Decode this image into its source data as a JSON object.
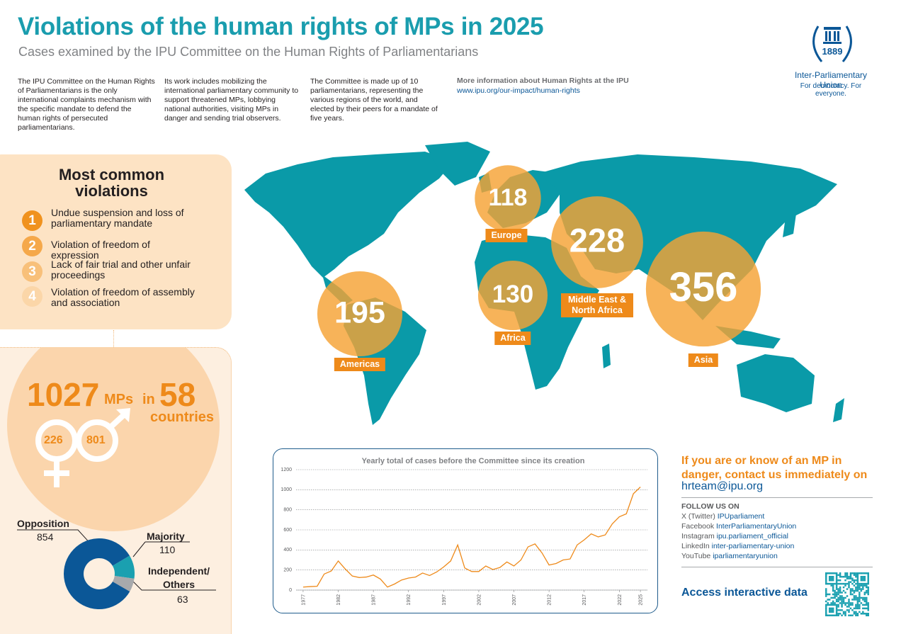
{
  "header": {
    "title": "Violations of the human rights of MPs in 2025",
    "subtitle": "Cases examined by the IPU Committee on the Human Rights of Parliamentarians"
  },
  "intro": [
    "The IPU Committee on the Human Rights of Parliamentarians is the only international complaints mechanism with the specific mandate to defend the human rights of persecuted parliamentarians.",
    "Its work includes mobilizing the international parliamentary community to support threatened MPs, lobbying national authorities, visiting MPs in danger and sending trial observers.",
    "The Committee is made up of 10 parliamentarians, representing the various regions of the world, and elected by their peers for a mandate of five years."
  ],
  "more_info": {
    "heading": "More information about Human Rights at the IPU",
    "url": "www.ipu.org/our-impact/human-rights"
  },
  "logo": {
    "year": "1889",
    "name": "Inter-Parliamentary Union",
    "tagline": "For democracy. For everyone."
  },
  "violations": {
    "title": "Most common violations",
    "items": [
      {
        "number": 1,
        "text": "Undue suspension and loss of parliamentary mandate"
      },
      {
        "number": 2,
        "text": "Violation of freedom of expression"
      },
      {
        "number": 3,
        "text": "Lack of fair trial and other unfair proceedings"
      },
      {
        "number": 4,
        "text": "Violation of freedom of assembly and association"
      }
    ]
  },
  "stats": {
    "total": 1027,
    "unit": "MPs",
    "joiner": "in",
    "countries": 58,
    "countries_label": "countries",
    "women": 226,
    "men": 801
  },
  "contact": {
    "message": "If you are or know of an MP in danger, contact us immediately on",
    "email": "hrteam@ipu.org"
  },
  "follow": {
    "heading": "FOLLOW US ON",
    "items": [
      {
        "platform": "X (Twitter)",
        "handle": "IPUparliament"
      },
      {
        "platform": "Facebook",
        "handle": "InterParliamentaryUnion"
      },
      {
        "platform": "Instagram",
        "handle": "ipu.parliament_official"
      },
      {
        "platform": "LinkedIn",
        "handle": "inter-parliamentary-union"
      },
      {
        "platform": "YouTube",
        "handle": "iparliamentaryunion"
      }
    ]
  },
  "access": "Access interactive data",
  "chart_data": [
    {
      "type": "bubble",
      "categories": [
        "Europe",
        "Middle East & North Africa",
        "Africa",
        "Americas",
        "Asia"
      ],
      "values": [
        118,
        228,
        130,
        195,
        356
      ],
      "color": "#f5a235",
      "label_color": "#ee8a1a"
    },
    {
      "type": "pie",
      "categories": [
        "Opposition",
        "Majority",
        "Independent/ Others"
      ],
      "values": [
        854,
        110,
        63
      ],
      "colors": [
        "#0b5797",
        "#1aa0b0",
        "#a7a9ac"
      ]
    },
    {
      "type": "line",
      "title": "Yearly total of cases before the Committee since its creation",
      "x": [
        1977,
        1978,
        1979,
        1980,
        1981,
        1982,
        1983,
        1984,
        1985,
        1986,
        1987,
        1988,
        1989,
        1990,
        1991,
        1992,
        1993,
        1994,
        1995,
        1996,
        1997,
        1998,
        1999,
        2000,
        2001,
        2002,
        2003,
        2004,
        2005,
        2006,
        2007,
        2008,
        2009,
        2010,
        2011,
        2012,
        2013,
        2014,
        2015,
        2016,
        2017,
        2018,
        2019,
        2020,
        2021,
        2022,
        2023,
        2024,
        2025
      ],
      "values": [
        30,
        35,
        38,
        160,
        190,
        290,
        210,
        140,
        125,
        130,
        150,
        110,
        30,
        60,
        100,
        120,
        130,
        170,
        145,
        180,
        230,
        290,
        450,
        220,
        185,
        185,
        240,
        205,
        225,
        280,
        240,
        300,
        430,
        460,
        370,
        250,
        265,
        300,
        310,
        450,
        500,
        560,
        530,
        550,
        660,
        730,
        760,
        960,
        1027
      ],
      "color": "#ee8a1a",
      "xlim": [
        1976,
        2026
      ],
      "xticks": [
        1977,
        1982,
        1987,
        1992,
        1997,
        2002,
        2007,
        2012,
        2017,
        2022,
        2025
      ],
      "ylim": [
        0,
        1200
      ],
      "yticks": [
        0,
        200,
        400,
        600,
        800,
        1000,
        1200
      ],
      "grid": true
    }
  ]
}
